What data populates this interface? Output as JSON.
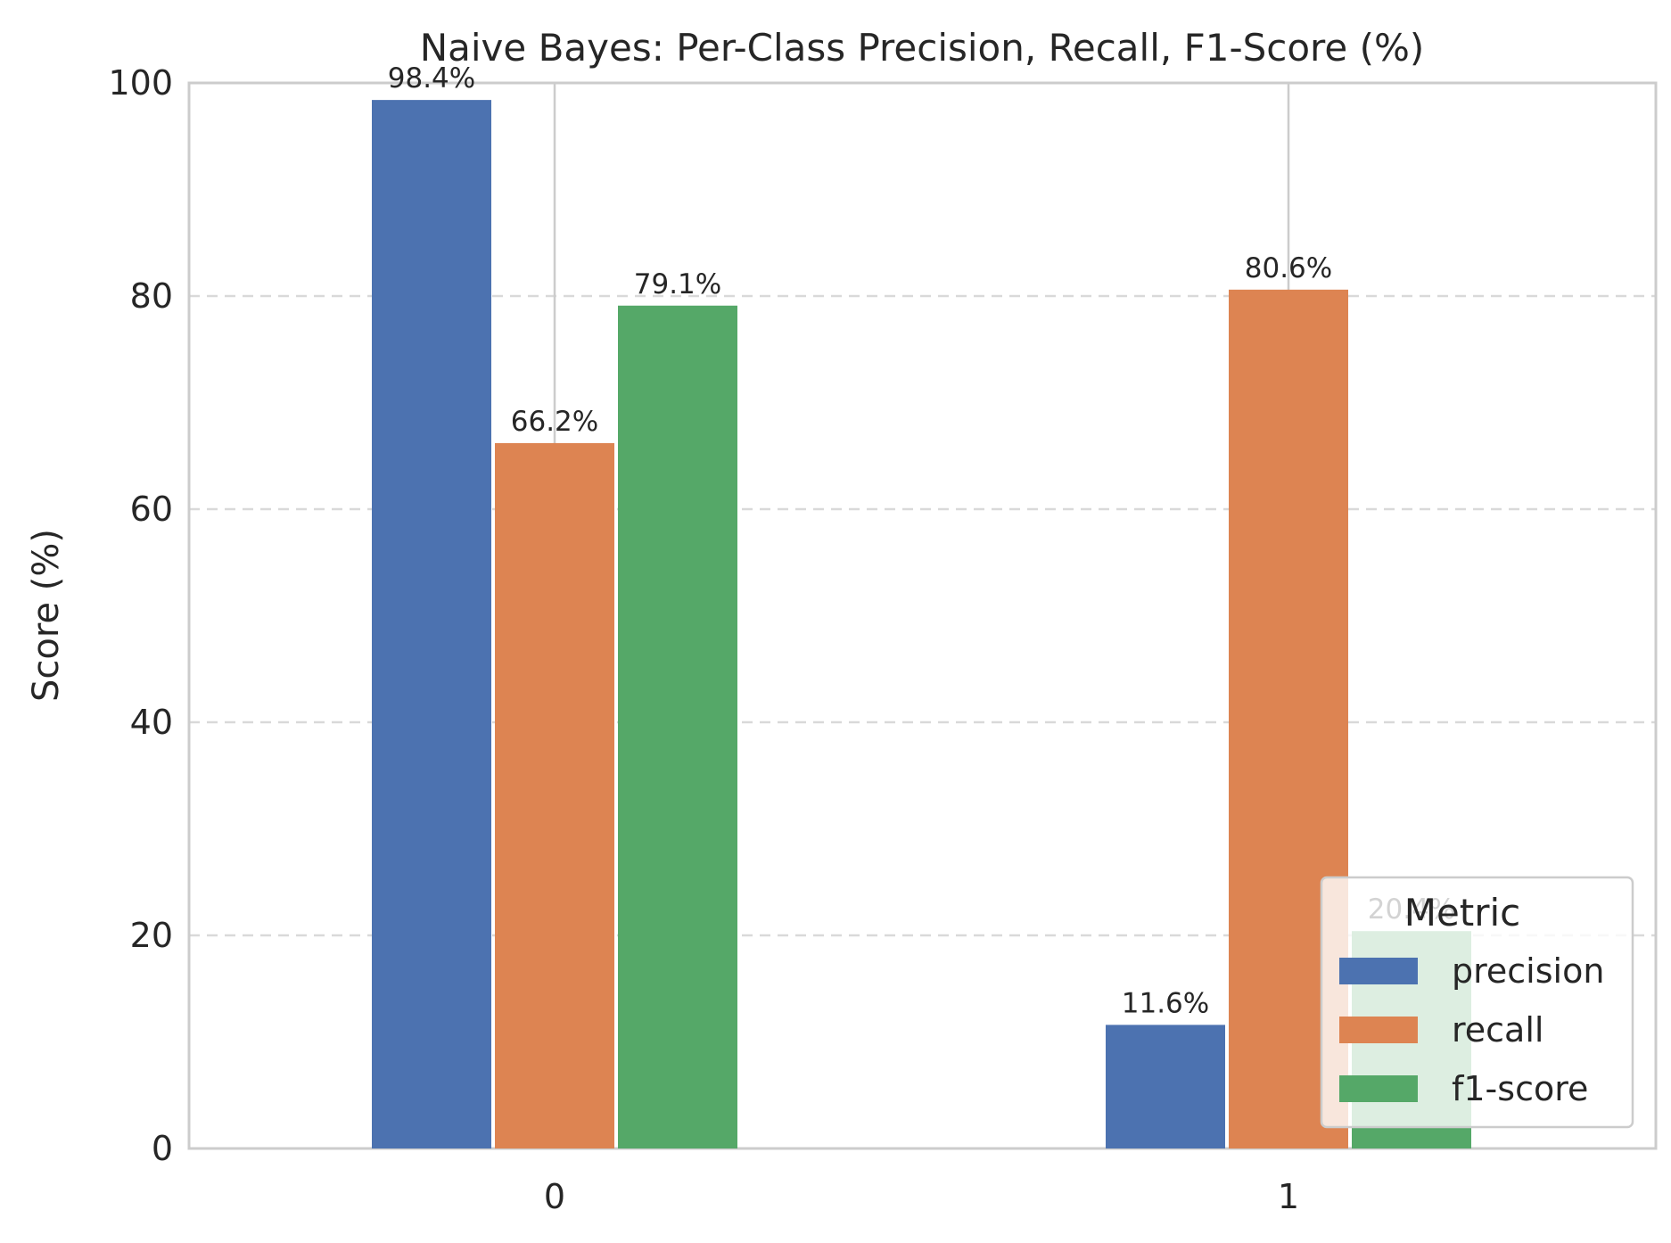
{
  "chart_data": {
    "type": "bar",
    "title": "Naive Bayes: Per-Class Precision, Recall, F1-Score (%)",
    "xlabel": "",
    "ylabel": "Score (%)",
    "ylim": [
      0,
      100
    ],
    "yticks": [
      0,
      20,
      40,
      60,
      80,
      100
    ],
    "categories": [
      "0",
      "1"
    ],
    "series": [
      {
        "name": "precision",
        "values": [
          98.4,
          11.6
        ],
        "color": "#4c72b0",
        "labels": [
          "98.4%",
          "11.6%"
        ]
      },
      {
        "name": "recall",
        "values": [
          66.2,
          80.6
        ],
        "color": "#dd8452",
        "labels": [
          "66.2%",
          "80.6%"
        ]
      },
      {
        "name": "f1-score",
        "values": [
          79.1,
          20.4
        ],
        "color": "#55a868",
        "labels": [
          "79.1%",
          "20.4%"
        ]
      }
    ],
    "grid": "horizontal dashed",
    "legend": {
      "title": "Metric",
      "placement": "lower-right"
    }
  }
}
